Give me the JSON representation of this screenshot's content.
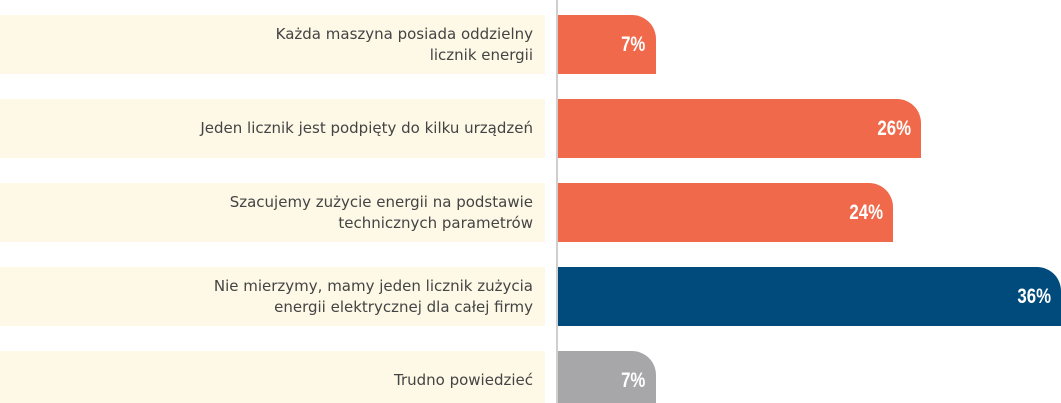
{
  "chart_data": {
    "type": "bar",
    "orientation": "horizontal",
    "categories": [
      "Każda maszyna posiada oddzielny\nlicznik energii",
      "Jeden licznik jest podpięty do kilku urządzeń",
      "Szacujemy zużycie energii na podstawie\ntechnicznych parametrów",
      "Nie mierzymy, mamy jeden licznik zużycia\nenergii elektrycznej dla całej firmy",
      "Trudno powiedzieć"
    ],
    "values": [
      7,
      26,
      24,
      36,
      7
    ],
    "value_labels": [
      "7%",
      "26%",
      "24%",
      "36%",
      "7%"
    ],
    "colors": [
      "#f0694a",
      "#f0694a",
      "#f0694a",
      "#004b7c",
      "#a7a7a9"
    ],
    "xlim": [
      0,
      36
    ]
  }
}
